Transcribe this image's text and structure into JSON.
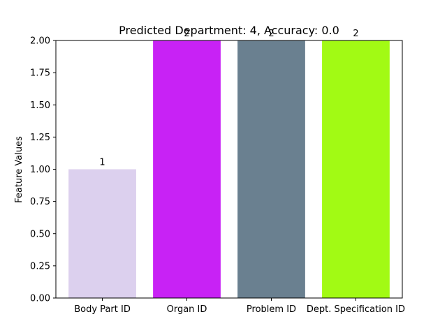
{
  "chart_data": {
    "type": "bar",
    "title": "Predicted Department: 4, Accuracy: 0.0",
    "xlabel": "",
    "ylabel": "Feature Values",
    "categories": [
      "Body Part ID",
      "Organ ID",
      "Problem ID",
      "Dept. Specification ID"
    ],
    "values": [
      1,
      2,
      2,
      2
    ],
    "data_labels": [
      "1",
      "2",
      "2",
      "2"
    ],
    "colors": [
      "#dcd0ee",
      "#c822f5",
      "#6a8090",
      "#a2fa14"
    ],
    "ylim": [
      0,
      2.0
    ],
    "yticks": [
      0.0,
      0.25,
      0.5,
      0.75,
      1.0,
      1.25,
      1.5,
      1.75,
      2.0
    ],
    "ytick_labels": [
      "0.00",
      "0.25",
      "0.50",
      "0.75",
      "1.00",
      "1.25",
      "1.50",
      "1.75",
      "2.00"
    ],
    "grid": false,
    "legend": "none"
  }
}
